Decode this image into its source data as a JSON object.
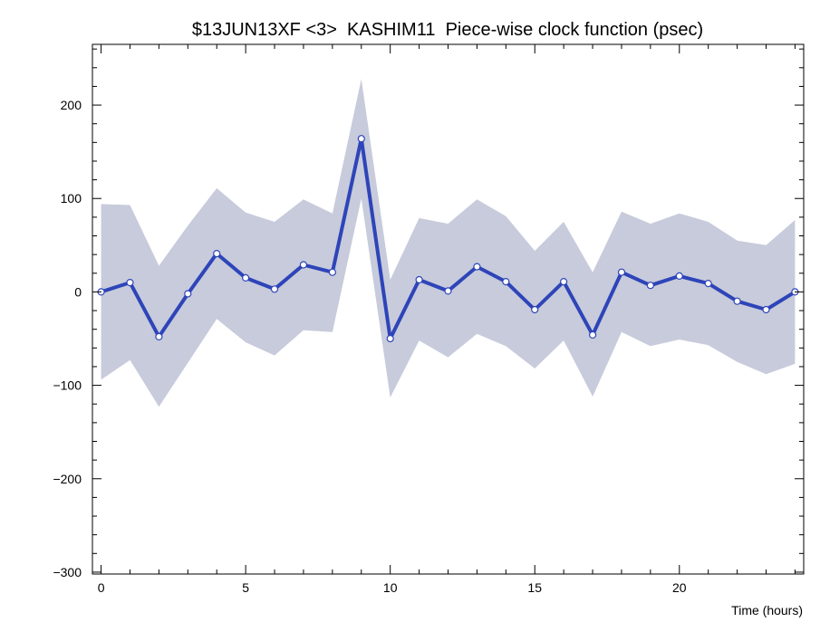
{
  "chart_data": {
    "type": "line",
    "title": "$13JUN13XF <3>  KASHIM11  Piece-wise clock function (psec)",
    "xlabel": "Time (hours)",
    "ylabel": "",
    "xlim": [
      -0.3,
      24.3
    ],
    "ylim": [
      -302,
      265
    ],
    "xticks": [
      0,
      5,
      10,
      15,
      20
    ],
    "xtick_labels": [
      "0",
      "5",
      "10",
      "15",
      "20"
    ],
    "yticks": [
      -300,
      -200,
      -100,
      0,
      100,
      200
    ],
    "ytick_labels": [
      "−300",
      "−200",
      "−100",
      "0",
      "100",
      "200"
    ],
    "grid": false,
    "x": [
      0,
      1,
      2,
      3,
      4,
      5,
      6,
      7,
      8,
      9,
      10,
      11,
      12,
      13,
      14,
      15,
      16,
      17,
      18,
      19,
      20,
      21,
      22,
      23,
      24
    ],
    "series": [
      {
        "values": [
          0,
          10,
          -48,
          -2,
          41,
          15,
          3,
          29,
          21,
          164,
          -50,
          13,
          1,
          27,
          11,
          -19,
          11,
          -46,
          21,
          7,
          17,
          9,
          -10,
          -19,
          0
        ]
      }
    ],
    "band": {
      "upper": [
        94,
        93,
        28,
        71,
        111,
        85,
        75,
        99,
        84,
        228,
        13,
        79,
        73,
        99,
        81,
        44,
        75,
        21,
        86,
        73,
        84,
        75,
        55,
        50,
        77
      ],
      "lower": [
        -94,
        -73,
        -123,
        -76,
        -29,
        -54,
        -68,
        -41,
        -43,
        100,
        -113,
        -52,
        -70,
        -45,
        -58,
        -82,
        -52,
        -112,
        -43,
        -58,
        -51,
        -57,
        -75,
        -88,
        -77
      ]
    },
    "colors": {
      "line": "#2e44b9",
      "band": "#c7cbdb",
      "marker_fill": "#ffffff",
      "axis": "#000000"
    }
  }
}
